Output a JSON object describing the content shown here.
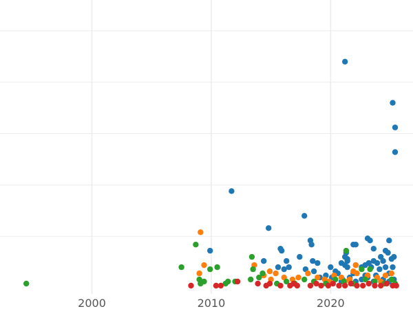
{
  "chart_data": {
    "type": "scatter",
    "title": "",
    "xlabel": "",
    "ylabel": "",
    "xlim": [
      1992.3,
      2026.9
    ],
    "ylim": [
      -3,
      140
    ],
    "grid": true,
    "legend": "none",
    "x_ticks": [
      {
        "value": 2000,
        "label": "2000"
      },
      {
        "value": 2010,
        "label": "2010"
      },
      {
        "value": 2020,
        "label": "2020"
      }
    ],
    "y_gridlines": [
      25,
      50,
      75,
      100,
      125
    ],
    "series": [
      {
        "color": "#1f77b4",
        "points": [
          [
            2021.2,
            110
          ],
          [
            2025.2,
            90
          ],
          [
            2025.4,
            78
          ],
          [
            2025.4,
            66
          ],
          [
            2011.7,
            47
          ],
          [
            2017.8,
            35
          ],
          [
            2014.8,
            29
          ],
          [
            2009.9,
            18
          ],
          [
            2015.8,
            19
          ],
          [
            2018.3,
            23
          ],
          [
            2018.4,
            21
          ],
          [
            2023.1,
            24
          ],
          [
            2023.3,
            23
          ],
          [
            2021.9,
            21
          ],
          [
            2022.1,
            21
          ],
          [
            2023.6,
            19
          ],
          [
            2024.9,
            23
          ],
          [
            2024.6,
            18
          ],
          [
            2024.8,
            17
          ],
          [
            2025.3,
            15
          ],
          [
            2025.1,
            14
          ],
          [
            2021.3,
            17
          ],
          [
            2021.2,
            15
          ],
          [
            2021.4,
            14
          ],
          [
            2017.4,
            15
          ],
          [
            2016.3,
            13
          ],
          [
            2014.4,
            13
          ],
          [
            2018.5,
            13
          ],
          [
            2018.9,
            12
          ],
          [
            2020.9,
            12
          ],
          [
            2021.4,
            13
          ],
          [
            2023.2,
            12
          ],
          [
            2023.6,
            13
          ],
          [
            2024.2,
            15
          ],
          [
            2024.4,
            13
          ],
          [
            2023.9,
            12
          ],
          [
            2015.6,
            10
          ],
          [
            2016.1,
            9
          ],
          [
            2016.5,
            10
          ],
          [
            2017.9,
            9
          ],
          [
            2018.6,
            8
          ],
          [
            2020.0,
            10
          ],
          [
            2020.4,
            8
          ],
          [
            2021.2,
            11
          ],
          [
            2021.4,
            10
          ],
          [
            2022.1,
            11
          ],
          [
            2022.6,
            10
          ],
          [
            2022.9,
            11
          ],
          [
            2023.4,
            10
          ],
          [
            2024.1,
            9
          ],
          [
            2024.6,
            10
          ],
          [
            2025.2,
            10
          ],
          [
            2019.6,
            6
          ],
          [
            2020.6,
            7
          ],
          [
            2021.9,
            7
          ],
          [
            2022.9,
            6
          ],
          [
            2023.8,
            6
          ],
          [
            2024.9,
            7
          ],
          [
            2019.1,
            5
          ],
          [
            2020.1,
            5
          ],
          [
            2021.0,
            4
          ],
          [
            2021.6,
            5
          ],
          [
            2022.6,
            4
          ],
          [
            2023.1,
            5
          ],
          [
            2024.4,
            4
          ],
          [
            2019.9,
            3
          ],
          [
            2020.9,
            3
          ],
          [
            2022.1,
            3
          ],
          [
            2023.6,
            3
          ],
          [
            2024.9,
            3
          ],
          [
            2025.3,
            4
          ],
          [
            2015.9,
            18
          ]
        ]
      },
      {
        "color": "#ff7f0e",
        "points": [
          [
            2009.1,
            27
          ],
          [
            2009.4,
            11
          ],
          [
            2013.6,
            11
          ],
          [
            2009.0,
            7
          ],
          [
            2014.9,
            8
          ],
          [
            2015.4,
            7
          ],
          [
            2014.4,
            6
          ],
          [
            2016.1,
            5
          ],
          [
            2016.8,
            4
          ],
          [
            2017.3,
            5
          ],
          [
            2018.1,
            7
          ],
          [
            2018.9,
            5
          ],
          [
            2019.5,
            4
          ],
          [
            2020.3,
            6
          ],
          [
            2020.9,
            5
          ],
          [
            2021.6,
            4
          ],
          [
            2022.2,
            7
          ],
          [
            2022.1,
            11
          ],
          [
            2021.9,
            8
          ],
          [
            2023.1,
            6
          ],
          [
            2023.9,
            5
          ],
          [
            2024.6,
            6
          ],
          [
            2025.1,
            7
          ],
          [
            2015.0,
            4
          ],
          [
            2019.9,
            3
          ],
          [
            2021.2,
            3
          ],
          [
            2024.2,
            3
          ]
        ]
      },
      {
        "color": "#2ca02c",
        "points": [
          [
            1994.5,
            2
          ],
          [
            2008.7,
            21
          ],
          [
            2021.3,
            18
          ],
          [
            2013.4,
            15
          ],
          [
            2007.5,
            10
          ],
          [
            2010.5,
            10
          ],
          [
            2009.9,
            9
          ],
          [
            2013.5,
            9
          ],
          [
            2014.3,
            7
          ],
          [
            2022.6,
            9
          ],
          [
            2023.3,
            9
          ],
          [
            2009.0,
            4
          ],
          [
            2009.4,
            3
          ],
          [
            2009.1,
            2
          ],
          [
            2011.4,
            3
          ],
          [
            2011.2,
            2
          ],
          [
            2012.0,
            3
          ],
          [
            2013.3,
            4
          ],
          [
            2014.0,
            5
          ],
          [
            2015.5,
            2
          ],
          [
            2016.3,
            3
          ],
          [
            2017.0,
            2
          ],
          [
            2017.8,
            4
          ],
          [
            2018.6,
            3
          ],
          [
            2019.6,
            2
          ],
          [
            2020.4,
            4
          ],
          [
            2021.1,
            3
          ],
          [
            2021.9,
            2
          ],
          [
            2022.9,
            4
          ],
          [
            2023.7,
            3
          ],
          [
            2024.5,
            2
          ],
          [
            2025.1,
            4
          ],
          [
            2025.4,
            2
          ]
        ]
      },
      {
        "color": "#d62728",
        "points": [
          [
            2008.3,
            1
          ],
          [
            2010.4,
            1
          ],
          [
            2010.8,
            1
          ],
          [
            2012.2,
            3
          ],
          [
            2013.9,
            2
          ],
          [
            2014.6,
            1
          ],
          [
            2014.9,
            2
          ],
          [
            2015.8,
            1
          ],
          [
            2016.6,
            1
          ],
          [
            2016.9,
            2
          ],
          [
            2017.2,
            1
          ],
          [
            2018.3,
            1
          ],
          [
            2018.8,
            2
          ],
          [
            2019.2,
            1
          ],
          [
            2019.8,
            1
          ],
          [
            2020.2,
            2
          ],
          [
            2020.7,
            1
          ],
          [
            2021.2,
            1
          ],
          [
            2021.7,
            2
          ],
          [
            2022.2,
            1
          ],
          [
            2022.7,
            1
          ],
          [
            2023.2,
            2
          ],
          [
            2023.7,
            1
          ],
          [
            2024.2,
            1
          ],
          [
            2024.7,
            2
          ],
          [
            2025.2,
            1
          ],
          [
            2025.5,
            1
          ]
        ]
      }
    ]
  }
}
